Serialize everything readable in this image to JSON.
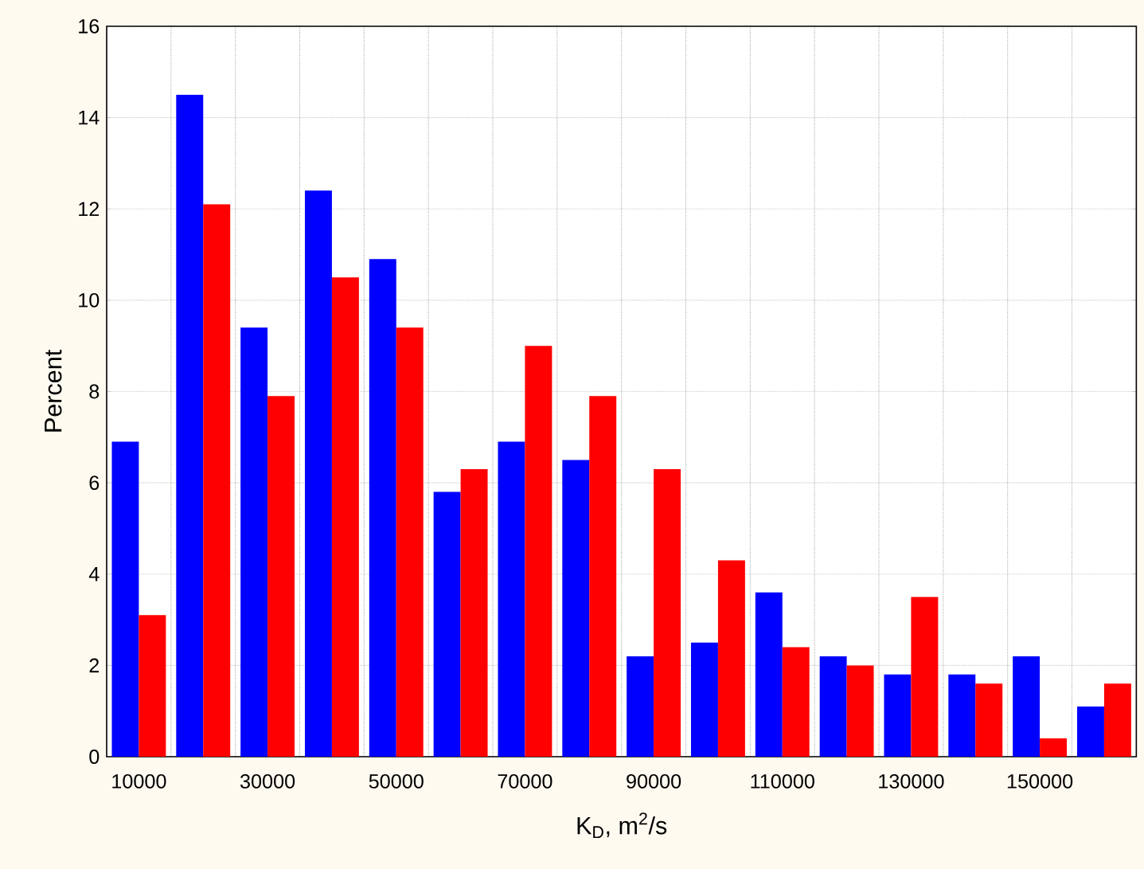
{
  "chart_data": {
    "type": "bar",
    "xlabel": "K$_{D}$, m$^{2}$/s",
    "ylabel": "Percent",
    "categories": [
      "10000",
      null,
      "30000",
      null,
      "50000",
      null,
      "70000",
      null,
      "90000",
      null,
      "110000",
      null,
      "130000",
      null,
      "150000",
      null
    ],
    "series": [
      {
        "color": "#0000ff",
        "values": [
          6.9,
          14.5,
          9.4,
          12.4,
          10.9,
          5.8,
          6.9,
          6.5,
          2.2,
          2.5,
          3.6,
          2.2,
          1.8,
          1.8,
          2.2,
          1.1
        ]
      },
      {
        "color": "#ff0000",
        "values": [
          3.1,
          12.1,
          7.9,
          10.5,
          9.4,
          6.3,
          9.0,
          7.9,
          6.3,
          4.3,
          2.4,
          2.0,
          3.5,
          1.6,
          0.4,
          1.6
        ]
      }
    ],
    "ylim": [
      0,
      16
    ],
    "yticks": [
      0,
      2,
      4,
      6,
      8,
      10,
      12,
      14,
      16
    ],
    "grid": true
  }
}
